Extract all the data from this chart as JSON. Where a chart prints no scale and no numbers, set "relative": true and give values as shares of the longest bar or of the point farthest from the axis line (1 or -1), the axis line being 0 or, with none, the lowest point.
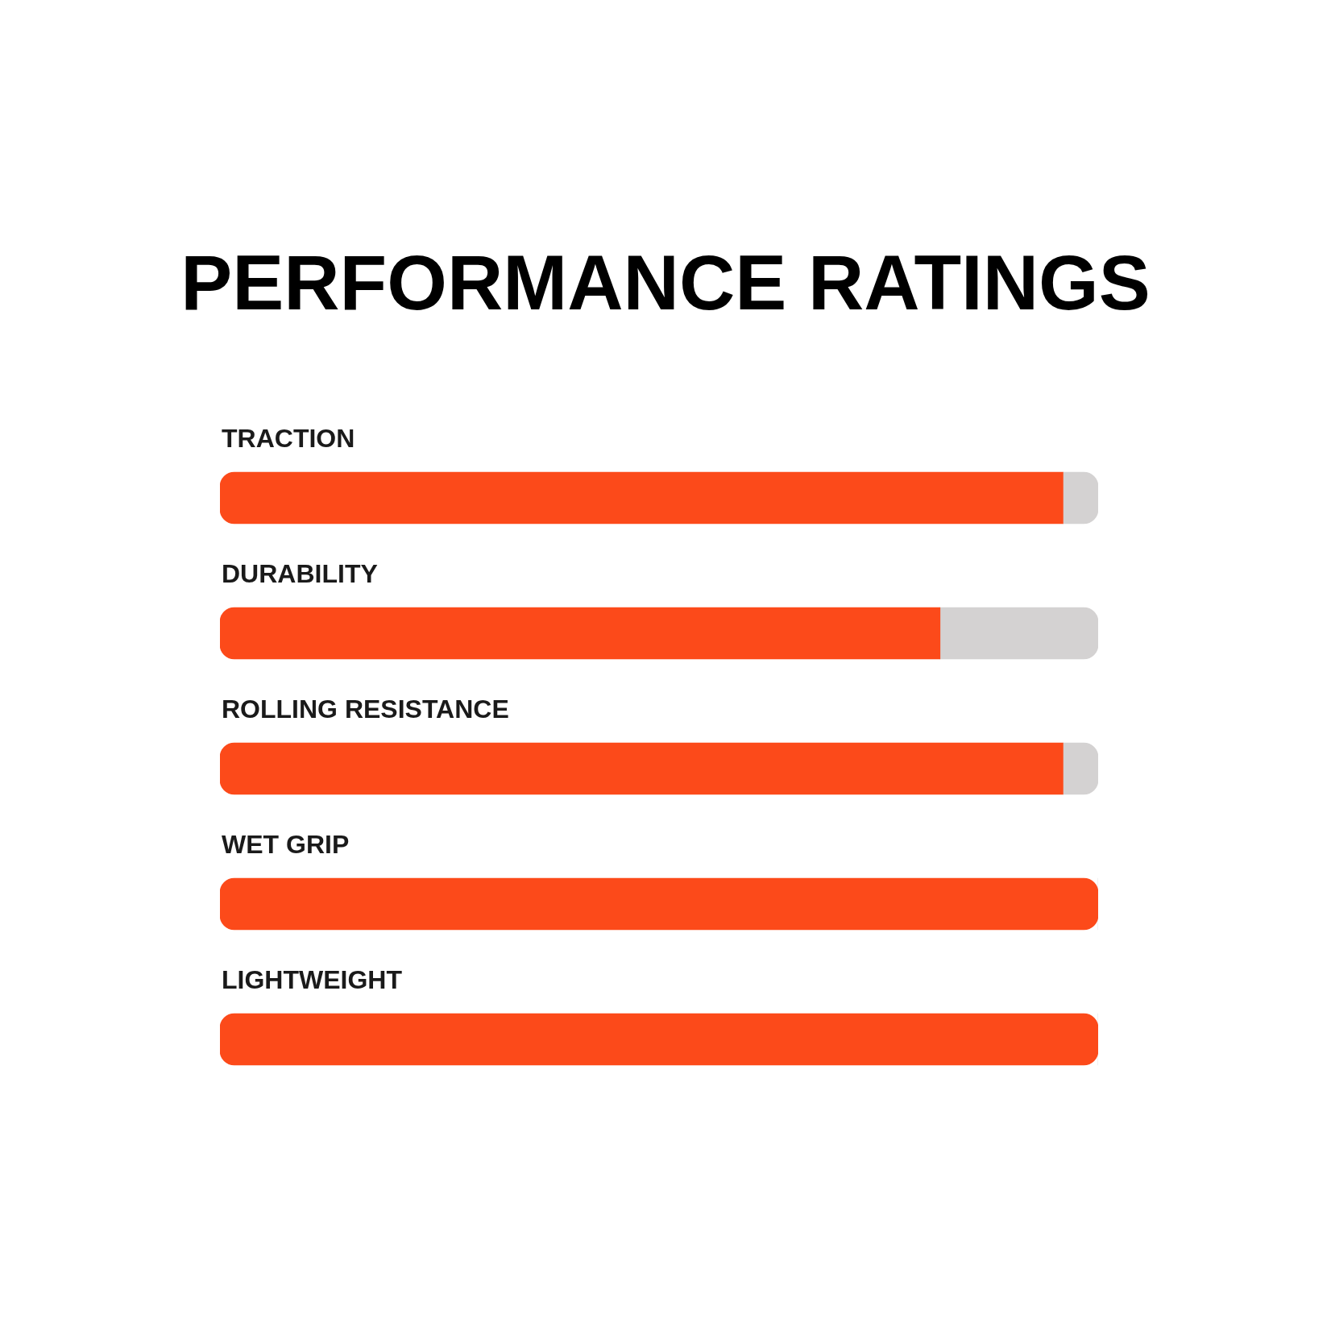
{
  "chart_data": {
    "type": "bar",
    "title": "PERFORMANCE RATINGS",
    "orientation": "horizontal",
    "stacked": true,
    "relative": true,
    "categories": [
      "TRACTION",
      "DURABILITY",
      "ROLLING RESISTANCE",
      "WET GRIP",
      "LIGHTWEIGHT"
    ],
    "series": [
      {
        "color": "#fc4a1a",
        "values": [
          0.96,
          0.82,
          0.96,
          1,
          1
        ]
      },
      {
        "color": "#d4d2d2",
        "values": [
          0.04,
          0.18,
          0.04,
          0,
          0
        ]
      }
    ]
  }
}
